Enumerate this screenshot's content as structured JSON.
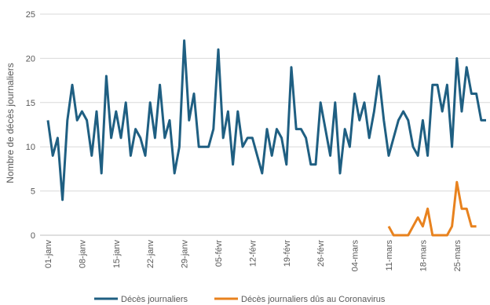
{
  "chart_data": {
    "type": "line",
    "title": "",
    "ylabel": "Nombre de décès journaliers",
    "xlabel": "",
    "ylim": [
      0,
      25
    ],
    "yticks": [
      0,
      5,
      10,
      15,
      20,
      25
    ],
    "grid": "horizontal",
    "legend": "bottom",
    "x_tick_labels": [
      "01-janv",
      "08-janv",
      "15-janv",
      "22-janv",
      "29-janv",
      "05-févr",
      "12-févr",
      "19-févr",
      "26-févr",
      "04-mars",
      "11-mars",
      "18-mars",
      "25-mars"
    ],
    "x_tick_every": 7,
    "series": [
      {
        "name": "Décès journaliers",
        "color": "#1f5f82",
        "start_index": 0,
        "values": [
          13,
          9,
          11,
          4,
          13,
          17,
          13,
          14,
          13,
          9,
          14,
          7,
          18,
          11,
          14,
          11,
          15,
          9,
          12,
          11,
          9,
          15,
          11,
          17,
          11,
          13,
          7,
          10,
          22,
          13,
          16,
          10,
          10,
          10,
          12,
          21,
          11,
          14,
          8,
          14,
          10,
          11,
          11,
          9,
          7,
          12,
          9,
          12,
          11,
          8,
          19,
          12,
          12,
          11,
          8,
          8,
          15,
          12,
          9,
          15,
          7,
          12,
          10,
          16,
          13,
          15,
          11,
          14,
          18,
          13,
          9,
          11,
          13,
          14,
          13,
          10,
          9,
          13,
          9,
          17,
          17,
          14,
          17,
          10,
          20,
          14,
          19,
          16,
          16,
          13,
          13
        ]
      },
      {
        "name": "Décès journaliers dûs au Coronavirus",
        "color": "#e8821e",
        "start_index": 70,
        "values": [
          1,
          0,
          0,
          0,
          0,
          1,
          2,
          1,
          3,
          0,
          0,
          0,
          0,
          1,
          6,
          3,
          3,
          1,
          1
        ]
      }
    ]
  }
}
